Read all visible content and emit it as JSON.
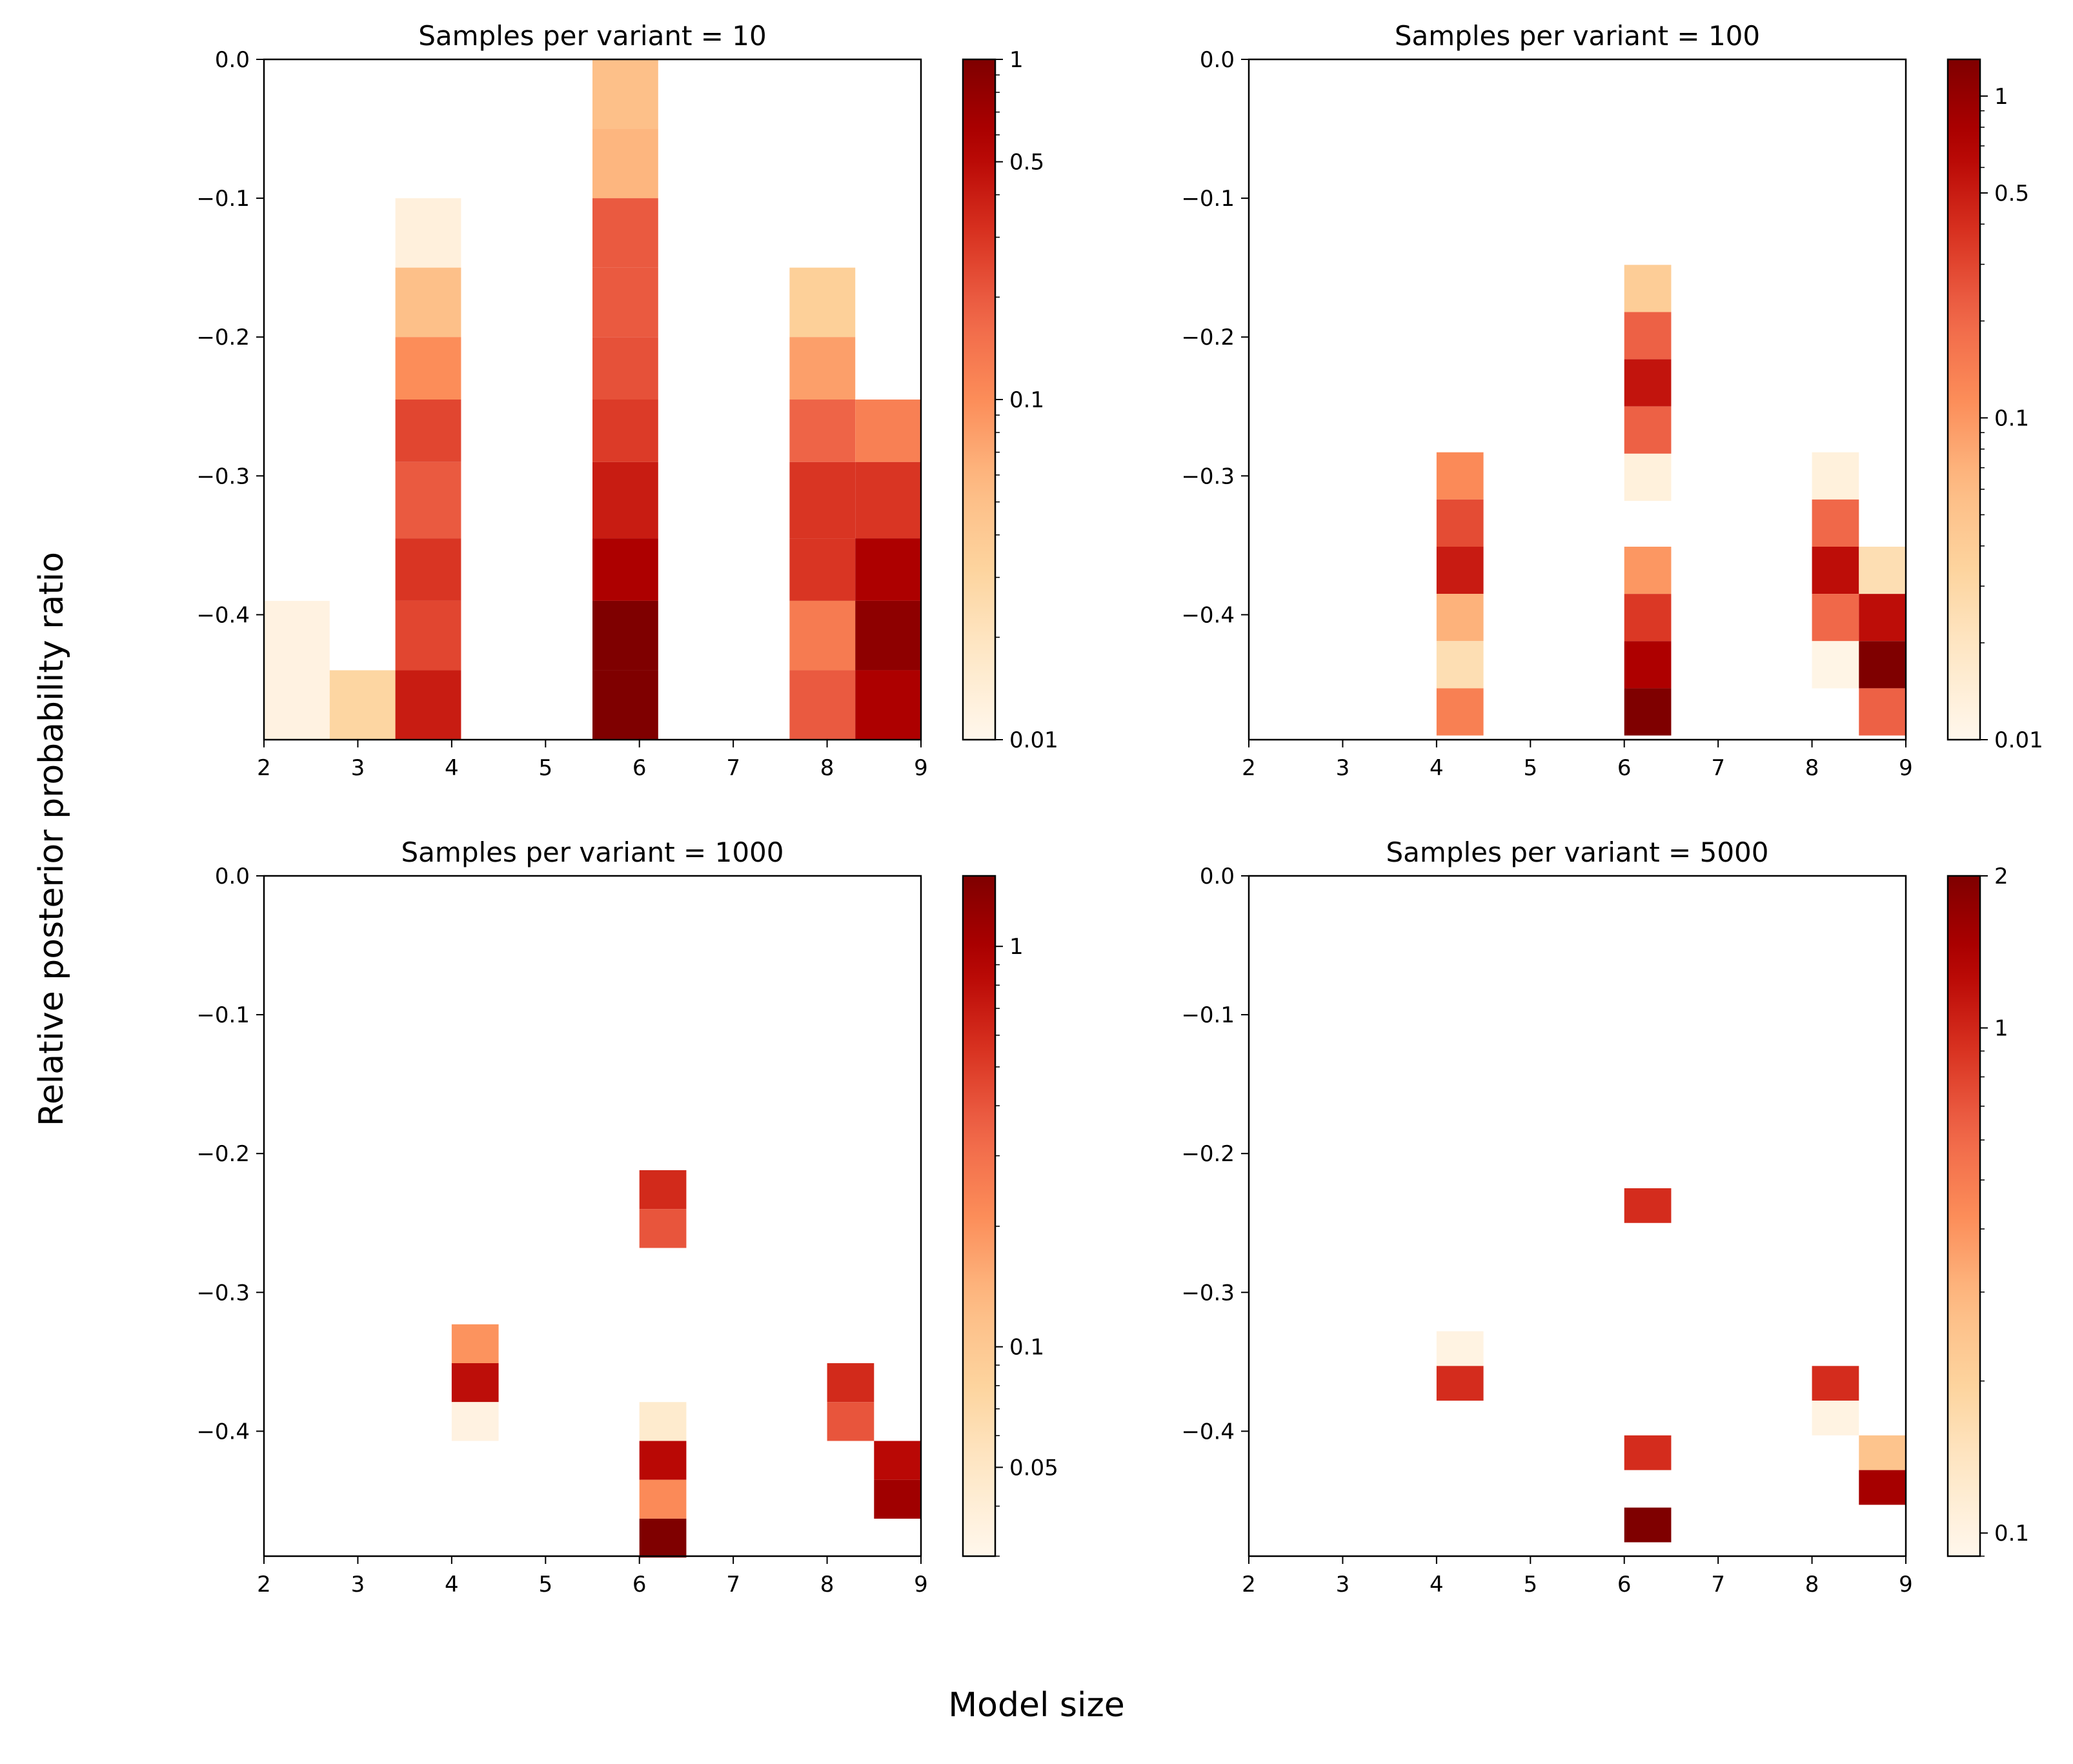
{
  "figure": {
    "xlabel": "Model size",
    "ylabel": "Relative posterior probability ratio"
  },
  "chart_data": [
    {
      "type": "heatmap",
      "title": "Samples per variant = 10",
      "xlim": [
        2,
        9
      ],
      "ylim": [
        -0.49,
        0.0
      ],
      "xticks": [
        2,
        3,
        4,
        5,
        6,
        7,
        8,
        9
      ],
      "yticks": [
        0.0,
        -0.1,
        -0.2,
        -0.3,
        -0.4
      ],
      "ytick_labels": [
        "0.0",
        "−0.1",
        "−0.2",
        "−0.3",
        "−0.4"
      ],
      "colormap": "OrRd",
      "color_scale": "log",
      "color_range": [
        0.01,
        1.0
      ],
      "colorbar_ticks": [
        0.01,
        0.1,
        0.5,
        1
      ],
      "colorbar_tick_labels": [
        "0.01",
        "0.1",
        "0.5",
        "1"
      ],
      "cells": [
        {
          "x": [
            2.0,
            2.7
          ],
          "y": [
            -0.39,
            -0.49
          ],
          "value": 0.012
        },
        {
          "x": [
            2.7,
            3.4
          ],
          "y": [
            -0.44,
            -0.49
          ],
          "value": 0.03
        },
        {
          "x": [
            3.4,
            4.1
          ],
          "y": [
            -0.1,
            -0.15
          ],
          "value": 0.013
        },
        {
          "x": [
            3.4,
            4.1
          ],
          "y": [
            -0.15,
            -0.2
          ],
          "value": 0.05
        },
        {
          "x": [
            3.4,
            4.1
          ],
          "y": [
            -0.2,
            -0.245
          ],
          "value": 0.1
        },
        {
          "x": [
            3.4,
            4.1
          ],
          "y": [
            -0.245,
            -0.29
          ],
          "value": 0.25
        },
        {
          "x": [
            3.4,
            4.1
          ],
          "y": [
            -0.29,
            -0.345
          ],
          "value": 0.2
        },
        {
          "x": [
            3.4,
            4.1
          ],
          "y": [
            -0.345,
            -0.39
          ],
          "value": 0.3
        },
        {
          "x": [
            3.4,
            4.1
          ],
          "y": [
            -0.39,
            -0.44
          ],
          "value": 0.25
        },
        {
          "x": [
            3.4,
            4.1
          ],
          "y": [
            -0.44,
            -0.49
          ],
          "value": 0.4
        },
        {
          "x": [
            5.5,
            6.2
          ],
          "y": [
            0.0,
            -0.05
          ],
          "value": 0.05
        },
        {
          "x": [
            5.5,
            6.2
          ],
          "y": [
            -0.05,
            -0.1
          ],
          "value": 0.06
        },
        {
          "x": [
            5.5,
            6.2
          ],
          "y": [
            -0.1,
            -0.15
          ],
          "value": 0.2
        },
        {
          "x": [
            5.5,
            6.2
          ],
          "y": [
            -0.15,
            -0.2
          ],
          "value": 0.2
        },
        {
          "x": [
            5.5,
            6.2
          ],
          "y": [
            -0.2,
            -0.245
          ],
          "value": 0.22
        },
        {
          "x": [
            5.5,
            6.2
          ],
          "y": [
            -0.245,
            -0.29
          ],
          "value": 0.28
        },
        {
          "x": [
            5.5,
            6.2
          ],
          "y": [
            -0.29,
            -0.345
          ],
          "value": 0.4
        },
        {
          "x": [
            5.5,
            6.2
          ],
          "y": [
            -0.345,
            -0.39
          ],
          "value": 0.6
        },
        {
          "x": [
            5.5,
            6.2
          ],
          "y": [
            -0.39,
            -0.44
          ],
          "value": 1.0
        },
        {
          "x": [
            5.5,
            6.2
          ],
          "y": [
            -0.44,
            -0.49
          ],
          "value": 1.0
        },
        {
          "x": [
            7.6,
            8.3
          ],
          "y": [
            -0.15,
            -0.2
          ],
          "value": 0.035
        },
        {
          "x": [
            7.6,
            8.3
          ],
          "y": [
            -0.2,
            -0.245
          ],
          "value": 0.08
        },
        {
          "x": [
            7.6,
            8.3
          ],
          "y": [
            -0.245,
            -0.29
          ],
          "value": 0.18
        },
        {
          "x": [
            7.6,
            8.3
          ],
          "y": [
            -0.29,
            -0.345
          ],
          "value": 0.3
        },
        {
          "x": [
            7.6,
            8.3
          ],
          "y": [
            -0.345,
            -0.39
          ],
          "value": 0.3
        },
        {
          "x": [
            7.6,
            8.3
          ],
          "y": [
            -0.39,
            -0.44
          ],
          "value": 0.13
        },
        {
          "x": [
            7.6,
            8.3
          ],
          "y": [
            -0.44,
            -0.49
          ],
          "value": 0.2
        },
        {
          "x": [
            8.3,
            9.0
          ],
          "y": [
            -0.245,
            -0.29
          ],
          "value": 0.12
        },
        {
          "x": [
            8.3,
            9.0
          ],
          "y": [
            -0.29,
            -0.345
          ],
          "value": 0.3
        },
        {
          "x": [
            8.3,
            9.0
          ],
          "y": [
            -0.345,
            -0.39
          ],
          "value": 0.6
        },
        {
          "x": [
            8.3,
            9.0
          ],
          "y": [
            -0.39,
            -0.44
          ],
          "value": 0.85
        },
        {
          "x": [
            8.3,
            9.0
          ],
          "y": [
            -0.44,
            -0.49
          ],
          "value": 0.6
        }
      ]
    },
    {
      "type": "heatmap",
      "title": "Samples per variant = 100",
      "xlim": [
        2,
        9
      ],
      "ylim": [
        -0.49,
        0.0
      ],
      "xticks": [
        2,
        3,
        4,
        5,
        6,
        7,
        8,
        9
      ],
      "yticks": [
        0.0,
        -0.1,
        -0.2,
        -0.3,
        -0.4
      ],
      "ytick_labels": [
        "0.0",
        "−0.1",
        "−0.2",
        "−0.3",
        "−0.4"
      ],
      "colormap": "OrRd",
      "color_scale": "log",
      "color_range": [
        0.01,
        1.3
      ],
      "colorbar_ticks": [
        0.01,
        0.1,
        0.5,
        1
      ],
      "colorbar_tick_labels": [
        "0.01",
        "0.1",
        "0.5",
        "1"
      ],
      "cells": [
        {
          "x": [
            4.0,
            4.5
          ],
          "y": [
            -0.283,
            -0.317
          ],
          "value": 0.12
        },
        {
          "x": [
            4.0,
            4.5
          ],
          "y": [
            -0.317,
            -0.351
          ],
          "value": 0.28
        },
        {
          "x": [
            4.0,
            4.5
          ],
          "y": [
            -0.351,
            -0.385
          ],
          "value": 0.5
        },
        {
          "x": [
            4.0,
            4.5
          ],
          "y": [
            -0.385,
            -0.419
          ],
          "value": 0.07
        },
        {
          "x": [
            4.0,
            4.5
          ],
          "y": [
            -0.419,
            -0.453
          ],
          "value": 0.025
        },
        {
          "x": [
            4.0,
            4.5
          ],
          "y": [
            -0.453,
            -0.487
          ],
          "value": 0.14
        },
        {
          "x": [
            6.0,
            6.5
          ],
          "y": [
            -0.148,
            -0.182
          ],
          "value": 0.04
        },
        {
          "x": [
            6.0,
            6.5
          ],
          "y": [
            -0.182,
            -0.216
          ],
          "value": 0.22
        },
        {
          "x": [
            6.0,
            6.5
          ],
          "y": [
            -0.216,
            -0.25
          ],
          "value": 0.55
        },
        {
          "x": [
            6.0,
            6.5
          ],
          "y": [
            -0.25,
            -0.284
          ],
          "value": 0.22
        },
        {
          "x": [
            6.0,
            6.5
          ],
          "y": [
            -0.284,
            -0.318
          ],
          "value": 0.013
        },
        {
          "x": [
            6.0,
            6.5
          ],
          "y": [
            -0.351,
            -0.385
          ],
          "value": 0.1
        },
        {
          "x": [
            6.0,
            6.5
          ],
          "y": [
            -0.385,
            -0.419
          ],
          "value": 0.35
        },
        {
          "x": [
            6.0,
            6.5
          ],
          "y": [
            -0.419,
            -0.453
          ],
          "value": 0.75
        },
        {
          "x": [
            6.0,
            6.5
          ],
          "y": [
            -0.453,
            -0.487
          ],
          "value": 1.3
        },
        {
          "x": [
            8.0,
            8.5
          ],
          "y": [
            -0.283,
            -0.317
          ],
          "value": 0.013
        },
        {
          "x": [
            8.0,
            8.5
          ],
          "y": [
            -0.317,
            -0.351
          ],
          "value": 0.2
        },
        {
          "x": [
            8.0,
            8.5
          ],
          "y": [
            -0.351,
            -0.385
          ],
          "value": 0.6
        },
        {
          "x": [
            8.0,
            8.5
          ],
          "y": [
            -0.385,
            -0.419
          ],
          "value": 0.2
        },
        {
          "x": [
            8.0,
            8.5
          ],
          "y": [
            -0.419,
            -0.453
          ],
          "value": 0.011
        },
        {
          "x": [
            8.5,
            9.0
          ],
          "y": [
            -0.351,
            -0.385
          ],
          "value": 0.025
        },
        {
          "x": [
            8.5,
            9.0
          ],
          "y": [
            -0.385,
            -0.419
          ],
          "value": 0.6
        },
        {
          "x": [
            8.5,
            9.0
          ],
          "y": [
            -0.419,
            -0.453
          ],
          "value": 1.3
        },
        {
          "x": [
            8.5,
            9.0
          ],
          "y": [
            -0.453,
            -0.487
          ],
          "value": 0.22
        }
      ]
    },
    {
      "type": "heatmap",
      "title": "Samples per variant = 1000",
      "xlim": [
        2,
        9
      ],
      "ylim": [
        -0.49,
        0.0
      ],
      "xticks": [
        2,
        3,
        4,
        5,
        6,
        7,
        8,
        9
      ],
      "yticks": [
        0.0,
        -0.1,
        -0.2,
        -0.3,
        -0.4
      ],
      "ytick_labels": [
        "0.0",
        "−0.1",
        "−0.2",
        "−0.3",
        "−0.4"
      ],
      "colormap": "OrRd",
      "color_scale": "log",
      "color_range": [
        0.03,
        1.5
      ],
      "colorbar_ticks": [
        0.05,
        0.1,
        1
      ],
      "colorbar_tick_labels": [
        "0.05",
        "0.1",
        "1"
      ],
      "cells": [
        {
          "x": [
            6.0,
            6.5
          ],
          "y": [
            -0.212,
            -0.24
          ],
          "value": 0.6
        },
        {
          "x": [
            6.0,
            6.5
          ],
          "y": [
            -0.24,
            -0.268
          ],
          "value": 0.4
        },
        {
          "x": [
            4.0,
            4.5
          ],
          "y": [
            -0.323,
            -0.351
          ],
          "value": 0.2
        },
        {
          "x": [
            4.0,
            4.5
          ],
          "y": [
            -0.351,
            -0.379
          ],
          "value": 0.8
        },
        {
          "x": [
            4.0,
            4.5
          ],
          "y": [
            -0.379,
            -0.407
          ],
          "value": 0.035
        },
        {
          "x": [
            6.0,
            6.5
          ],
          "y": [
            -0.379,
            -0.407
          ],
          "value": 0.045
        },
        {
          "x": [
            6.0,
            6.5
          ],
          "y": [
            -0.407,
            -0.435
          ],
          "value": 0.85
        },
        {
          "x": [
            6.0,
            6.5
          ],
          "y": [
            -0.435,
            -0.463
          ],
          "value": 0.22
        },
        {
          "x": [
            6.0,
            6.5
          ],
          "y": [
            -0.463,
            -0.491
          ],
          "value": 1.5
        },
        {
          "x": [
            8.0,
            8.5
          ],
          "y": [
            -0.351,
            -0.379
          ],
          "value": 0.6
        },
        {
          "x": [
            8.0,
            8.5
          ],
          "y": [
            -0.379,
            -0.407
          ],
          "value": 0.4
        },
        {
          "x": [
            8.5,
            9.0
          ],
          "y": [
            -0.407,
            -0.435
          ],
          "value": 0.85
        },
        {
          "x": [
            8.5,
            9.0
          ],
          "y": [
            -0.435,
            -0.463
          ],
          "value": 1.1
        }
      ]
    },
    {
      "type": "heatmap",
      "title": "Samples per variant = 5000",
      "xlim": [
        2,
        9
      ],
      "ylim": [
        -0.49,
        0.0
      ],
      "xticks": [
        2,
        3,
        4,
        5,
        6,
        7,
        8,
        9
      ],
      "yticks": [
        0.0,
        -0.1,
        -0.2,
        -0.3,
        -0.4
      ],
      "ytick_labels": [
        "0.0",
        "−0.1",
        "−0.2",
        "−0.3",
        "−0.4"
      ],
      "colormap": "OrRd",
      "color_scale": "log",
      "color_range": [
        0.09,
        2.0
      ],
      "colorbar_ticks": [
        0.1,
        1,
        2
      ],
      "colorbar_tick_labels": [
        "0.1",
        "1",
        "2"
      ],
      "cells": [
        {
          "x": [
            6.0,
            6.5
          ],
          "y": [
            -0.225,
            -0.25
          ],
          "value": 0.95
        },
        {
          "x": [
            4.0,
            4.5
          ],
          "y": [
            -0.328,
            -0.353
          ],
          "value": 0.1
        },
        {
          "x": [
            4.0,
            4.5
          ],
          "y": [
            -0.353,
            -0.378
          ],
          "value": 0.95
        },
        {
          "x": [
            8.0,
            8.5
          ],
          "y": [
            -0.353,
            -0.378
          ],
          "value": 0.95
        },
        {
          "x": [
            8.0,
            8.5
          ],
          "y": [
            -0.378,
            -0.403
          ],
          "value": 0.1
        },
        {
          "x": [
            6.0,
            6.5
          ],
          "y": [
            -0.403,
            -0.428
          ],
          "value": 0.95
        },
        {
          "x": [
            8.5,
            9.0
          ],
          "y": [
            -0.403,
            -0.428
          ],
          "value": 0.25
        },
        {
          "x": [
            8.5,
            9.0
          ],
          "y": [
            -0.428,
            -0.453
          ],
          "value": 1.5
        },
        {
          "x": [
            6.0,
            6.5
          ],
          "y": [
            -0.455,
            -0.48
          ],
          "value": 2.0
        }
      ]
    }
  ]
}
